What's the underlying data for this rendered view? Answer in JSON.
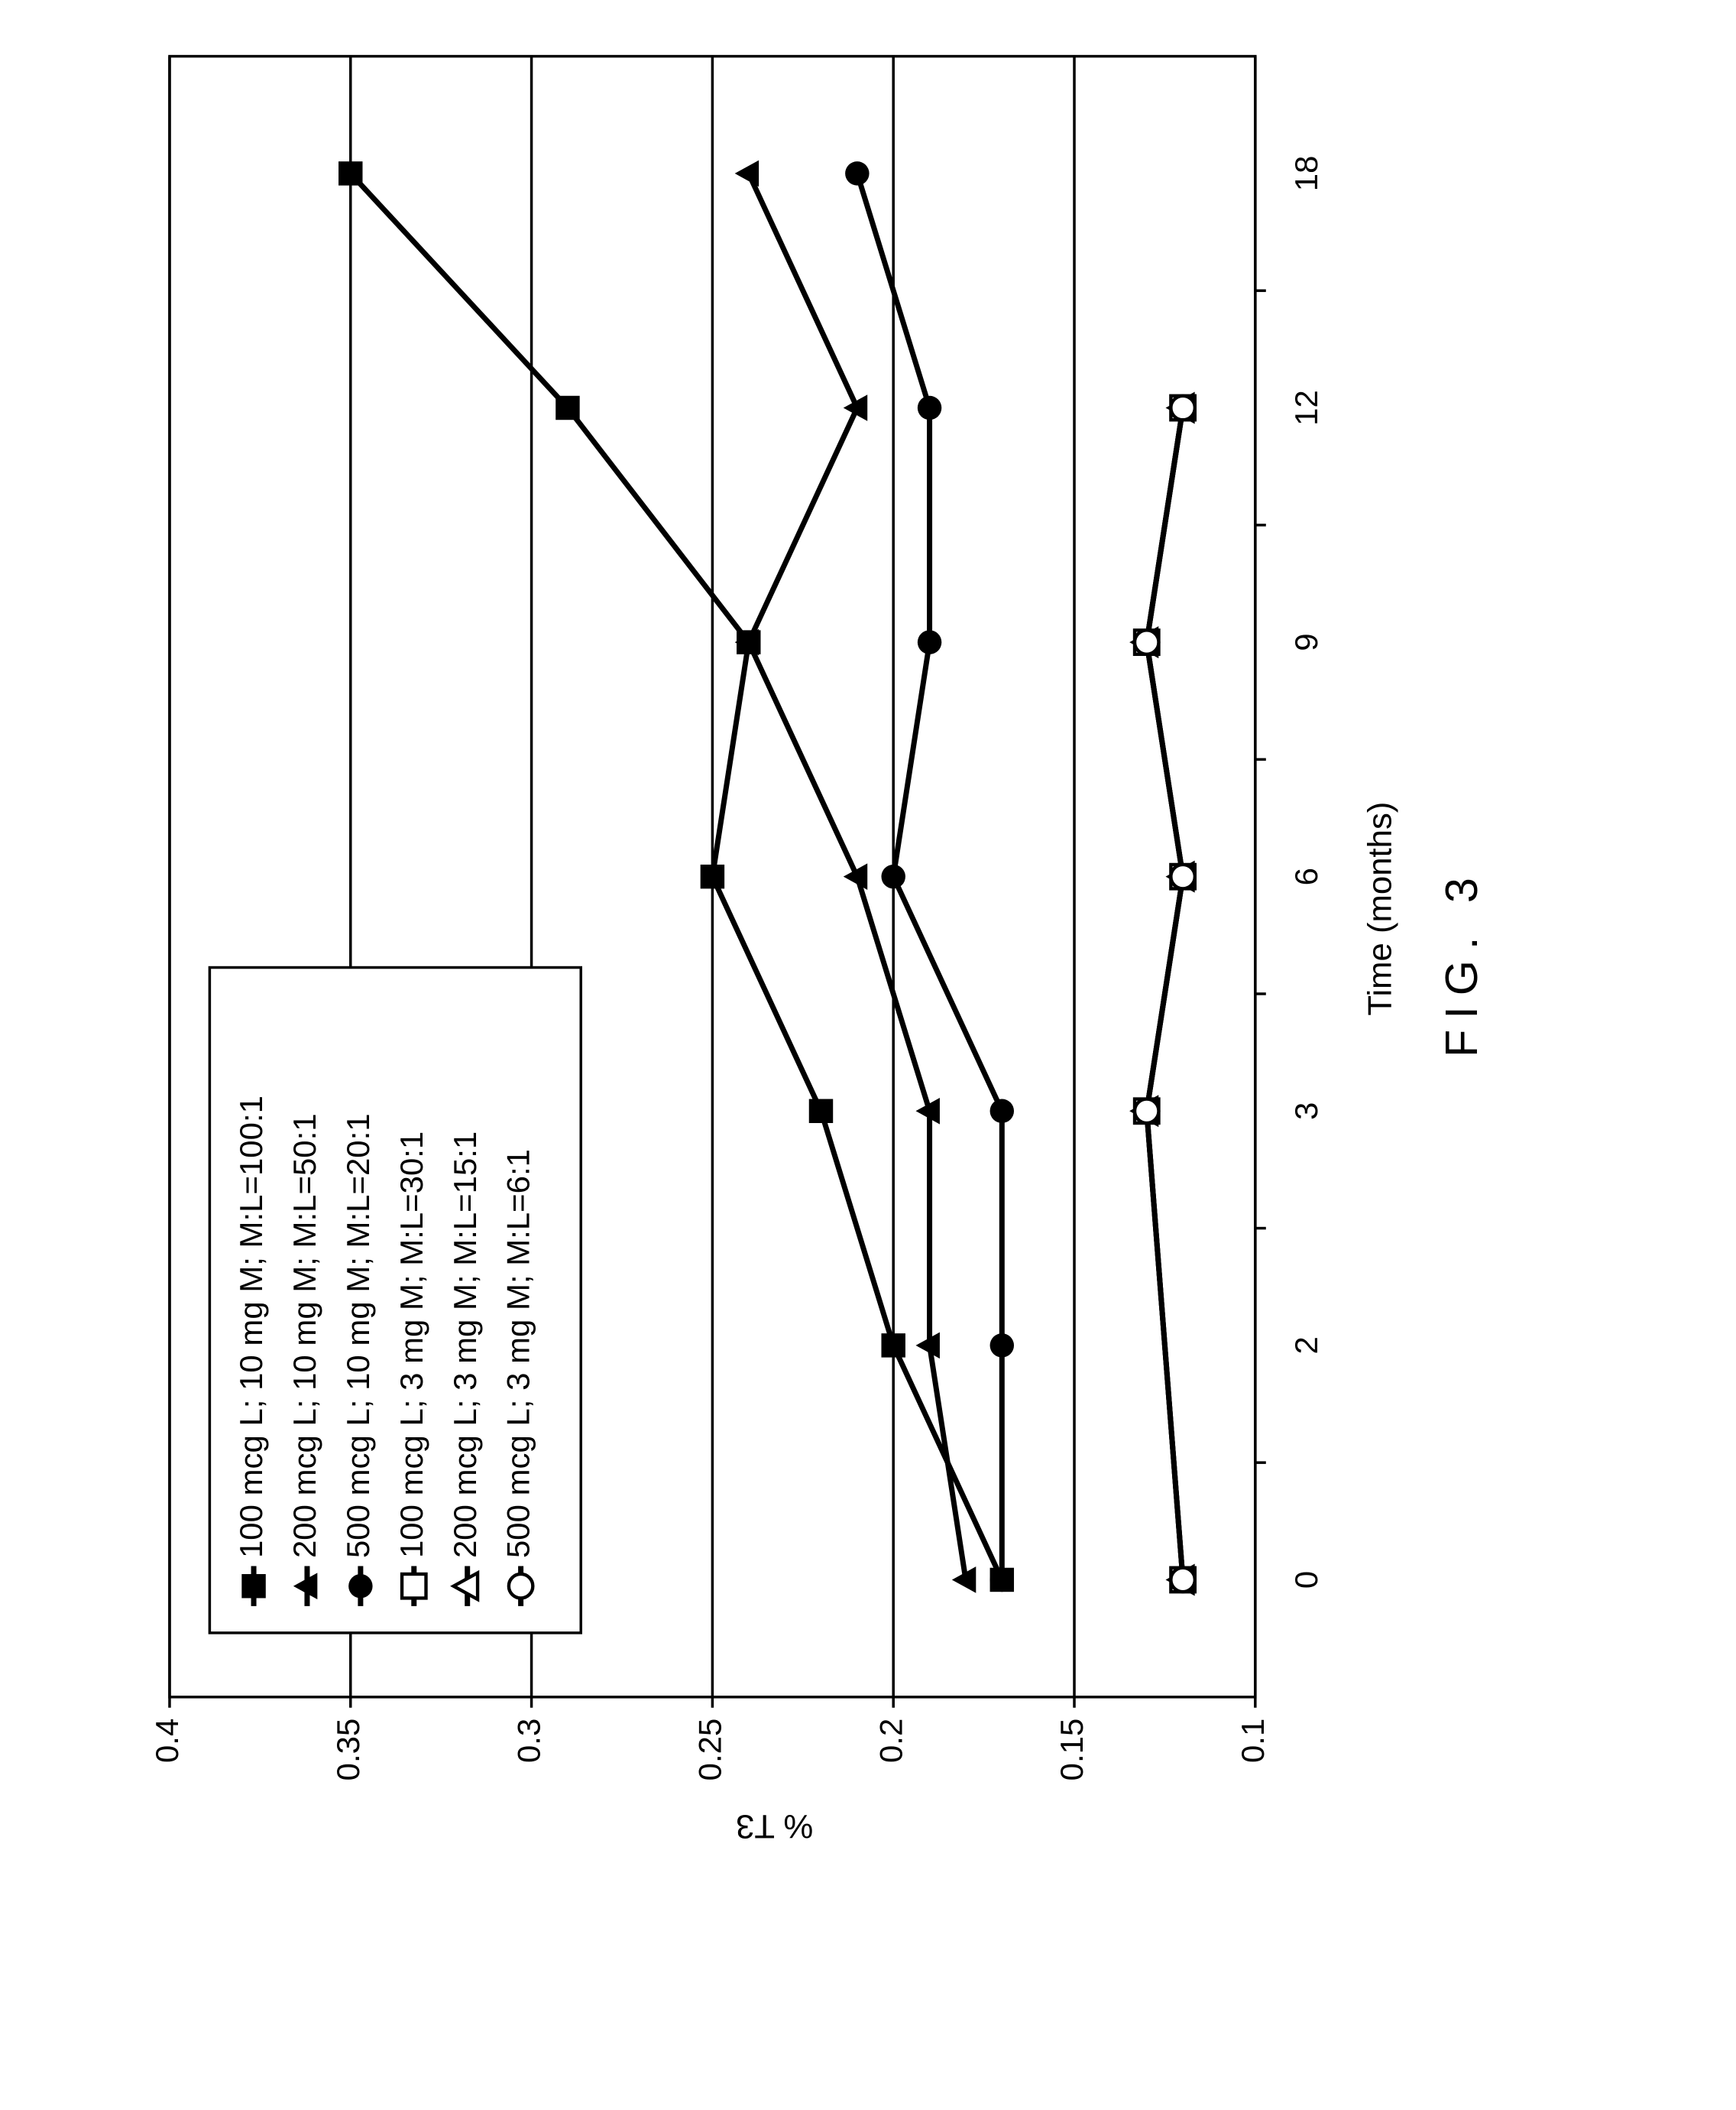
{
  "chart_data": {
    "type": "line",
    "x_label": "Time (months)",
    "y_label": "% T3",
    "figure_label": "FIG. 3",
    "categories": [
      "0",
      "2",
      "3",
      "6",
      "9",
      "12",
      "18"
    ],
    "ylim": [
      0.4,
      0.1
    ],
    "yticks": [
      0.4,
      0.35,
      0.3,
      0.25,
      0.2,
      0.15,
      0.1
    ],
    "grid": true,
    "legend": "upper left",
    "series": [
      {
        "name": "100 mcg L; 10 mg M; M:L=100:1",
        "color": "#000000",
        "marker": "square",
        "filled": true,
        "values": [
          0.17,
          0.2,
          0.22,
          0.25,
          0.24,
          0.29,
          0.35
        ]
      },
      {
        "name": "200 mcg L; 10 mg M; M:L=50:1",
        "color": "#000000",
        "marker": "triangle",
        "filled": true,
        "values": [
          0.18,
          0.19,
          0.19,
          0.21,
          0.24,
          0.21,
          0.24
        ]
      },
      {
        "name": "500 mcg L; 10 mg M; M:L=20:1",
        "color": "#000000",
        "marker": "circle",
        "filled": true,
        "values": [
          0.17,
          0.17,
          0.17,
          0.2,
          0.19,
          0.19,
          0.21
        ]
      },
      {
        "name": "100 mcg L; 3 mg M; M:L=30:1",
        "color": "#000000",
        "marker": "square",
        "filled": false,
        "x": [
          "0",
          "3",
          "6",
          "9",
          "12"
        ],
        "values": [
          0.12,
          0.13,
          0.12,
          0.13,
          0.12
        ]
      },
      {
        "name": "200 mcg L; 3 mg M; M:L=15:1",
        "color": "#000000",
        "marker": "triangle",
        "filled": false,
        "x": [
          "0",
          "3",
          "6",
          "9",
          "12"
        ],
        "values": [
          0.12,
          0.13,
          0.12,
          0.13,
          0.12
        ]
      },
      {
        "name": "500 mcg L; 3 mg M; M:L=6:1",
        "color": "#000000",
        "marker": "circle",
        "filled": false,
        "x": [
          "0",
          "3",
          "6",
          "9",
          "12"
        ],
        "values": [
          0.12,
          0.13,
          0.12,
          0.13,
          0.12
        ]
      }
    ]
  }
}
